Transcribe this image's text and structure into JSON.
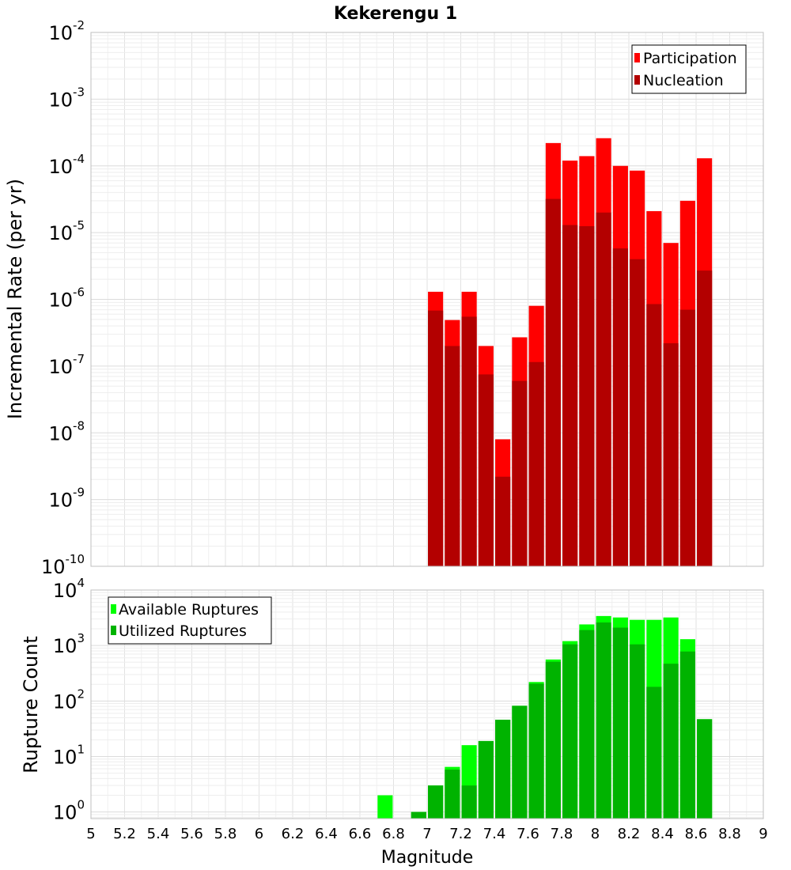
{
  "title": "Kekerengu 1",
  "xlabel": "Magnitude",
  "colors": {
    "participation": "#ff0000",
    "nucleation": "#b30000",
    "available": "#00ff00",
    "utilized": "#00b300",
    "grid": "#e6e6e6",
    "frame": "#bfbfbf"
  },
  "chart_data": [
    {
      "type": "bar",
      "ylabel": "Incremental Rate (per yr)",
      "yscale": "log",
      "ylim": [
        1e-10,
        0.01
      ],
      "xlim": [
        5,
        9
      ],
      "x_ticks": [
        "5",
        "5.2",
        "5.4",
        "5.6",
        "5.8",
        "6",
        "6.2",
        "6.4",
        "6.6",
        "6.8",
        "7",
        "7.2",
        "7.4",
        "7.6",
        "7.8",
        "8",
        "8.2",
        "8.4",
        "8.6",
        "8.8",
        "9"
      ],
      "y_ticks": [
        {
          "base": "10",
          "exp": "-10"
        },
        {
          "base": "10",
          "exp": "-9"
        },
        {
          "base": "10",
          "exp": "-8"
        },
        {
          "base": "10",
          "exp": "-7"
        },
        {
          "base": "10",
          "exp": "-6"
        },
        {
          "base": "10",
          "exp": "-5"
        },
        {
          "base": "10",
          "exp": "-4"
        },
        {
          "base": "10",
          "exp": "-3"
        },
        {
          "base": "10",
          "exp": "-2"
        }
      ],
      "legend_position": "top-right",
      "x": [
        7.05,
        7.15,
        7.25,
        7.35,
        7.45,
        7.55,
        7.65,
        7.75,
        7.85,
        7.95,
        8.05,
        8.15,
        8.25,
        8.35,
        8.45,
        8.55,
        8.65
      ],
      "series": [
        {
          "name": "Participation",
          "values": [
            1.3e-06,
            4.9e-07,
            1.3e-06,
            2e-07,
            8e-09,
            2.7e-07,
            8e-07,
            0.00022,
            0.00012,
            0.00014,
            0.00026,
            0.0001,
            8.5e-05,
            2.1e-05,
            7e-06,
            3e-05,
            0.00013
          ]
        },
        {
          "name": "Nucleation",
          "values": [
            6.8e-07,
            2e-07,
            5.5e-07,
            7.5e-08,
            2.2e-09,
            6e-08,
            1.15e-07,
            3.2e-05,
            1.3e-05,
            1.25e-05,
            2e-05,
            5.8e-06,
            4e-06,
            8.5e-07,
            2.2e-07,
            7e-07,
            2.7e-06
          ]
        }
      ]
    },
    {
      "type": "bar",
      "ylabel": "Rupture Count",
      "yscale": "log",
      "ylim": [
        0.76,
        10000
      ],
      "xlim": [
        5,
        9
      ],
      "y_ticks": [
        {
          "base": "10",
          "exp": "0"
        },
        {
          "base": "10",
          "exp": "1"
        },
        {
          "base": "10",
          "exp": "2"
        },
        {
          "base": "10",
          "exp": "3"
        },
        {
          "base": "10",
          "exp": "4"
        }
      ],
      "legend_position": "top-left",
      "x": [
        6.75,
        6.95,
        7.05,
        7.15,
        7.25,
        7.35,
        7.45,
        7.55,
        7.65,
        7.75,
        7.85,
        7.95,
        8.05,
        8.15,
        8.25,
        8.35,
        8.45,
        8.55,
        8.65
      ],
      "series": [
        {
          "name": "Available Ruptures",
          "values": [
            2,
            1,
            3,
            6.5,
            16,
            19,
            46,
            82,
            220,
            560,
            1200,
            2400,
            3400,
            3200,
            2900,
            2900,
            3200,
            1300,
            47
          ]
        },
        {
          "name": "Utilized Ruptures",
          "values": [
            0,
            1,
            3,
            5.8,
            3,
            19,
            46,
            82,
            205,
            510,
            1050,
            1900,
            2600,
            2100,
            1050,
            180,
            470,
            780,
            47
          ]
        }
      ]
    }
  ]
}
